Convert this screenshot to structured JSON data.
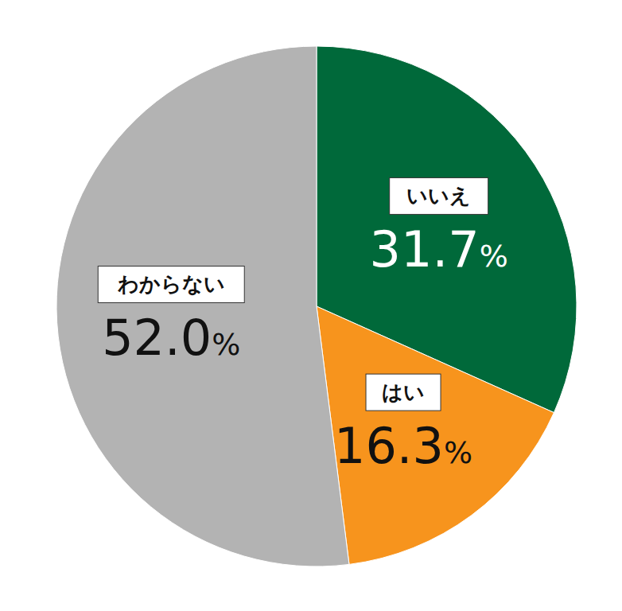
{
  "chart_data": {
    "type": "pie",
    "categories": [
      "いいえ",
      "はい",
      "わからない"
    ],
    "values": [
      31.7,
      16.3,
      52.0
    ],
    "value_labels": [
      "31.7%",
      "16.3%",
      "52.0%"
    ],
    "colors": [
      "#00693a",
      "#f7941d",
      "#b3b3b3"
    ],
    "data_labels": true
  }
}
